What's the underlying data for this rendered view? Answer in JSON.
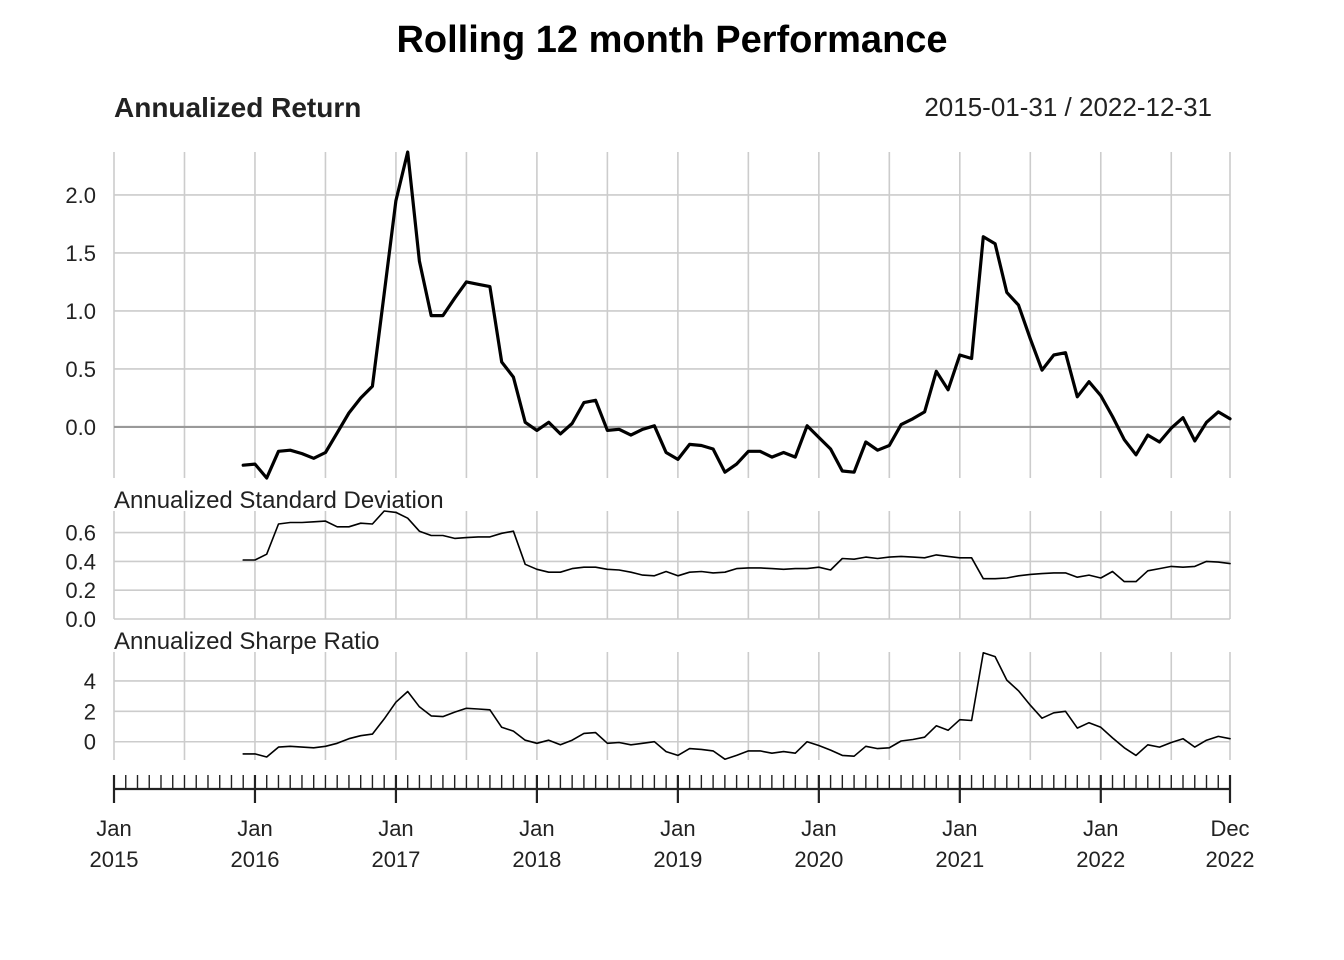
{
  "chart_data": {
    "type": "line",
    "title": "Rolling 12 month Performance",
    "date_range_label": "2015-01-31 / 2022-12-31",
    "x_axis": {
      "start": "2015-01",
      "end": "2022-12",
      "major_ticks": [
        {
          "date": "2015-01",
          "line1": "Jan",
          "line2": "2015"
        },
        {
          "date": "2016-01",
          "line1": "Jan",
          "line2": "2016"
        },
        {
          "date": "2017-01",
          "line1": "Jan",
          "line2": "2017"
        },
        {
          "date": "2018-01",
          "line1": "Jan",
          "line2": "2018"
        },
        {
          "date": "2019-01",
          "line1": "Jan",
          "line2": "2019"
        },
        {
          "date": "2020-01",
          "line1": "Jan",
          "line2": "2020"
        },
        {
          "date": "2021-01",
          "line1": "Jan",
          "line2": "2021"
        },
        {
          "date": "2022-01",
          "line1": "Jan",
          "line2": "2022"
        },
        {
          "date": "2022-12",
          "line1": "Dec",
          "line2": "2022"
        }
      ]
    },
    "x": [
      "2015-12",
      "2016-01",
      "2016-02",
      "2016-03",
      "2016-04",
      "2016-05",
      "2016-06",
      "2016-07",
      "2016-08",
      "2016-09",
      "2016-10",
      "2016-11",
      "2016-12",
      "2017-01",
      "2017-02",
      "2017-03",
      "2017-04",
      "2017-05",
      "2017-06",
      "2017-07",
      "2017-08",
      "2017-09",
      "2017-10",
      "2017-11",
      "2017-12",
      "2018-01",
      "2018-02",
      "2018-03",
      "2018-04",
      "2018-05",
      "2018-06",
      "2018-07",
      "2018-08",
      "2018-09",
      "2018-10",
      "2018-11",
      "2018-12",
      "2019-01",
      "2019-02",
      "2019-03",
      "2019-04",
      "2019-05",
      "2019-06",
      "2019-07",
      "2019-08",
      "2019-09",
      "2019-10",
      "2019-11",
      "2019-12",
      "2020-01",
      "2020-02",
      "2020-03",
      "2020-04",
      "2020-05",
      "2020-06",
      "2020-07",
      "2020-08",
      "2020-09",
      "2020-10",
      "2020-11",
      "2020-12",
      "2021-01",
      "2021-02",
      "2021-03",
      "2021-04",
      "2021-05",
      "2021-06",
      "2021-07",
      "2021-08",
      "2021-09",
      "2021-10",
      "2021-11",
      "2021-12",
      "2022-01",
      "2022-02",
      "2022-03",
      "2022-04",
      "2022-05",
      "2022-06",
      "2022-07",
      "2022-08",
      "2022-09",
      "2022-10",
      "2022-11",
      "2022-12"
    ],
    "panels": [
      {
        "name": "Annualized Return",
        "label": "Annualized Return",
        "ylim": [
          -0.44,
          2.37
        ],
        "y_ticks": [
          0.0,
          0.5,
          1.0,
          1.5,
          2.0
        ],
        "y_tick_labels": [
          "0.0",
          "0.5",
          "1.0",
          "1.5",
          "2.0"
        ],
        "values": [
          -0.33,
          -0.32,
          -0.44,
          -0.21,
          -0.2,
          -0.23,
          -0.27,
          -0.22,
          -0.05,
          0.12,
          0.25,
          0.35,
          1.15,
          1.95,
          2.37,
          1.43,
          0.96,
          0.96,
          1.11,
          1.25,
          1.23,
          1.21,
          0.56,
          0.43,
          0.04,
          -0.03,
          0.04,
          -0.06,
          0.03,
          0.21,
          0.23,
          -0.03,
          -0.02,
          -0.07,
          -0.02,
          0.01,
          -0.22,
          -0.28,
          -0.15,
          -0.16,
          -0.19,
          -0.39,
          -0.32,
          -0.21,
          -0.21,
          -0.26,
          -0.22,
          -0.26,
          0.01,
          -0.09,
          -0.19,
          -0.38,
          -0.39,
          -0.13,
          -0.2,
          -0.16,
          0.02,
          0.07,
          0.13,
          0.48,
          0.32,
          0.62,
          0.59,
          1.64,
          1.58,
          1.16,
          1.05,
          0.76,
          0.49,
          0.62,
          0.64,
          0.26,
          0.39,
          0.27,
          0.09,
          -0.11,
          -0.24,
          -0.07,
          -0.13,
          -0.01,
          0.08,
          -0.12,
          0.04,
          0.13,
          0.07
        ]
      },
      {
        "name": "Annualized Standard Deviation",
        "label": "Annualized Standard Deviation",
        "ylim": [
          0.0,
          0.75
        ],
        "y_ticks": [
          0.0,
          0.2,
          0.4,
          0.6
        ],
        "y_tick_labels": [
          "0.0",
          "0.2",
          "0.4",
          "0.6"
        ],
        "values": [
          0.41,
          0.41,
          0.45,
          0.66,
          0.67,
          0.67,
          0.675,
          0.68,
          0.64,
          0.64,
          0.665,
          0.66,
          0.75,
          0.74,
          0.7,
          0.61,
          0.58,
          0.58,
          0.56,
          0.565,
          0.57,
          0.57,
          0.595,
          0.61,
          0.38,
          0.345,
          0.325,
          0.325,
          0.35,
          0.36,
          0.36,
          0.345,
          0.34,
          0.325,
          0.305,
          0.3,
          0.33,
          0.3,
          0.325,
          0.33,
          0.32,
          0.325,
          0.35,
          0.355,
          0.355,
          0.35,
          0.345,
          0.35,
          0.35,
          0.36,
          0.34,
          0.42,
          0.415,
          0.43,
          0.42,
          0.43,
          0.435,
          0.43,
          0.425,
          0.445,
          0.435,
          0.425,
          0.425,
          0.28,
          0.28,
          0.285,
          0.3,
          0.31,
          0.315,
          0.32,
          0.32,
          0.29,
          0.305,
          0.285,
          0.33,
          0.26,
          0.26,
          0.335,
          0.35,
          0.365,
          0.36,
          0.365,
          0.4,
          0.395,
          0.385
        ]
      },
      {
        "name": "Annualized Sharpe Ratio",
        "label": "Annualized Sharpe Ratio",
        "ylim": [
          -1.2,
          5.9
        ],
        "y_ticks": [
          0,
          2,
          4
        ],
        "y_tick_labels": [
          "0",
          "2",
          "4"
        ],
        "values": [
          -0.8,
          -0.8,
          -1.0,
          -0.35,
          -0.3,
          -0.35,
          -0.4,
          -0.3,
          -0.1,
          0.2,
          0.4,
          0.5,
          1.5,
          2.6,
          3.3,
          2.3,
          1.7,
          1.65,
          1.95,
          2.2,
          2.15,
          2.1,
          0.95,
          0.7,
          0.1,
          -0.1,
          0.1,
          -0.2,
          0.1,
          0.55,
          0.6,
          -0.1,
          -0.05,
          -0.2,
          -0.1,
          0.0,
          -0.65,
          -0.9,
          -0.45,
          -0.5,
          -0.6,
          -1.15,
          -0.9,
          -0.6,
          -0.6,
          -0.75,
          -0.65,
          -0.75,
          0.0,
          -0.25,
          -0.55,
          -0.9,
          -0.95,
          -0.3,
          -0.45,
          -0.4,
          0.05,
          0.15,
          0.3,
          1.05,
          0.75,
          1.45,
          1.4,
          5.85,
          5.6,
          4.05,
          3.35,
          2.4,
          1.55,
          1.9,
          2.0,
          0.9,
          1.25,
          0.95,
          0.25,
          -0.4,
          -0.9,
          -0.2,
          -0.35,
          -0.05,
          0.2,
          -0.35,
          0.1,
          0.35,
          0.2
        ]
      }
    ]
  }
}
